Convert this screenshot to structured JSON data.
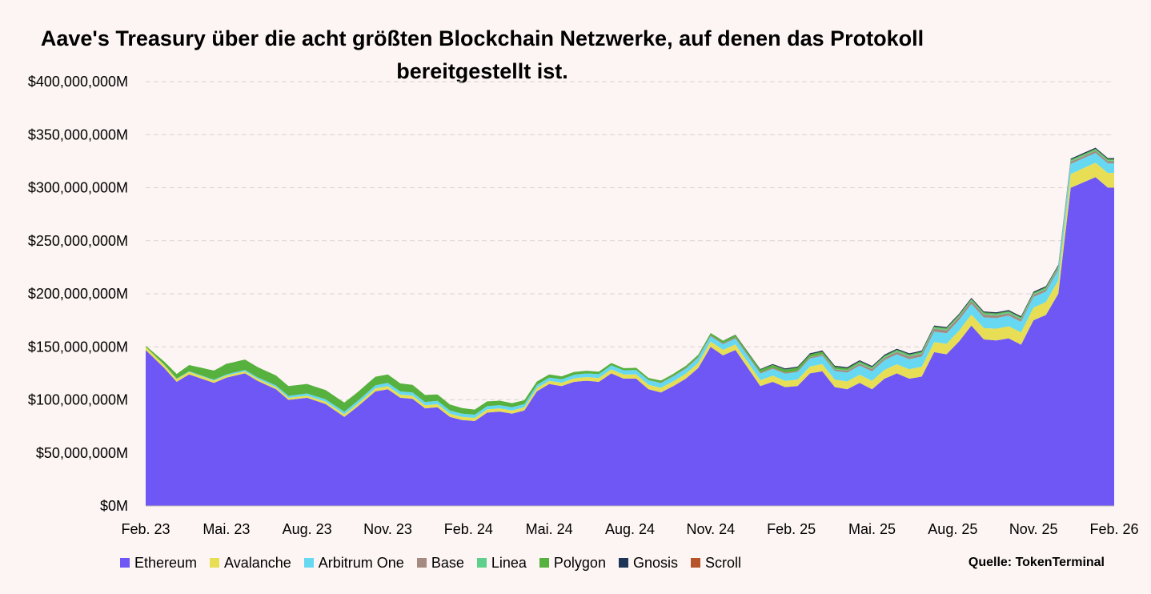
{
  "chart_data": {
    "type": "area",
    "stacked": true,
    "title_lines": [
      "Aave's Treasury über die acht größten Blockchain Netzwerke, auf denen das Protokoll",
      "bereitgestellt ist."
    ],
    "ylim": [
      0,
      400000000
    ],
    "yticks": [
      0,
      50000000,
      100000000,
      150000000,
      200000000,
      250000000,
      300000000,
      350000000,
      400000000
    ],
    "ytick_labels": [
      "$0M",
      "$50,000,000M",
      "$100,000,000M",
      "$150,000,000M",
      "$200,000,000M",
      "$250,000,000M",
      "$300,000,000M",
      "$350,000,000M",
      "$400,000,000M"
    ],
    "x_tick_labels": [
      "Feb. 23",
      "Mai. 23",
      "Aug. 23",
      "Nov. 23",
      "Feb. 24",
      "Mai. 24",
      "Aug. 24",
      "Nov. 24",
      "Feb. 25",
      "Mai. 25",
      "Aug. 25",
      "Nov. 25",
      "Feb. 26"
    ],
    "grid": "horizontal dashed",
    "legend_position": "bottom",
    "source": "Quelle: TokenTerminal",
    "x_domain": [
      0,
      156
    ],
    "series": [
      {
        "name": "Ethereum",
        "color": "#6e57f5",
        "values": [
          [
            0,
            147
          ],
          [
            3,
            130
          ],
          [
            5,
            117
          ],
          [
            7,
            124
          ],
          [
            9,
            120
          ],
          [
            11,
            116
          ],
          [
            13,
            121
          ],
          [
            16,
            125
          ],
          [
            18,
            118
          ],
          [
            21,
            110
          ],
          [
            23,
            100
          ],
          [
            26,
            102
          ],
          [
            29,
            96
          ],
          [
            32,
            84
          ],
          [
            34,
            93
          ],
          [
            37,
            108
          ],
          [
            39,
            110
          ],
          [
            41,
            102
          ],
          [
            43,
            101
          ],
          [
            45,
            92
          ],
          [
            47,
            93
          ],
          [
            49,
            84
          ],
          [
            51,
            81
          ],
          [
            53,
            80
          ],
          [
            55,
            88
          ],
          [
            57,
            89
          ],
          [
            59,
            87
          ],
          [
            61,
            90
          ],
          [
            63,
            108
          ],
          [
            65,
            115
          ],
          [
            67,
            113
          ],
          [
            69,
            117
          ],
          [
            71,
            118
          ],
          [
            73,
            117
          ],
          [
            75,
            125
          ],
          [
            77,
            120
          ],
          [
            79,
            120
          ],
          [
            81,
            110
          ],
          [
            83,
            107
          ],
          [
            85,
            113
          ],
          [
            87,
            120
          ],
          [
            89,
            130
          ],
          [
            91,
            150
          ],
          [
            93,
            142
          ],
          [
            95,
            147
          ],
          [
            97,
            130
          ],
          [
            99,
            113
          ],
          [
            101,
            117
          ],
          [
            103,
            112
          ],
          [
            105,
            113
          ],
          [
            107,
            125
          ],
          [
            109,
            127
          ],
          [
            111,
            112
          ],
          [
            113,
            110
          ],
          [
            115,
            116
          ],
          [
            117,
            110
          ],
          [
            119,
            120
          ],
          [
            121,
            125
          ],
          [
            123,
            120
          ],
          [
            125,
            122
          ],
          [
            127,
            145
          ],
          [
            129,
            143
          ],
          [
            131,
            155
          ],
          [
            133,
            170
          ],
          [
            135,
            157
          ],
          [
            137,
            156
          ],
          [
            139,
            158
          ],
          [
            141,
            152
          ],
          [
            143,
            175
          ],
          [
            145,
            180
          ],
          [
            147,
            200
          ],
          [
            149,
            300
          ],
          [
            151,
            305
          ],
          [
            153,
            310
          ],
          [
            155,
            300
          ]
        ]
      },
      {
        "name": "Avalanche",
        "color": "#e7de56",
        "values": [
          3,
          2,
          2,
          3,
          3,
          3,
          4,
          5,
          6,
          8,
          10,
          12,
          14
        ]
      },
      {
        "name": "Arbitrum One",
        "color": "#66d8f2",
        "values": [
          0,
          1,
          2,
          3,
          3,
          3,
          4,
          5,
          7,
          9,
          10,
          10,
          9
        ]
      },
      {
        "name": "Base",
        "color": "#a58a80",
        "values": [
          0,
          0,
          0,
          0,
          0,
          0,
          0,
          1,
          1,
          2,
          3,
          2,
          2
        ]
      },
      {
        "name": "Linea",
        "color": "#5fd08b",
        "values": [
          0,
          0,
          0,
          0,
          0,
          0,
          0,
          0,
          0,
          1,
          1,
          1,
          1
        ]
      },
      {
        "name": "Polygon",
        "color": "#57b13f",
        "values": [
          1,
          10,
          9,
          8,
          5,
          3,
          2,
          2,
          3,
          1,
          1,
          1,
          1
        ]
      },
      {
        "name": "Gnosis",
        "color": "#1d3557",
        "values": [
          0,
          0,
          0,
          0,
          0,
          0,
          0,
          0,
          1,
          1,
          1,
          1,
          1
        ]
      },
      {
        "name": "Scroll",
        "color": "#b5532a",
        "values": [
          0,
          0,
          0,
          0,
          0,
          0,
          0,
          0,
          0,
          0,
          0,
          0,
          0
        ]
      }
    ]
  }
}
